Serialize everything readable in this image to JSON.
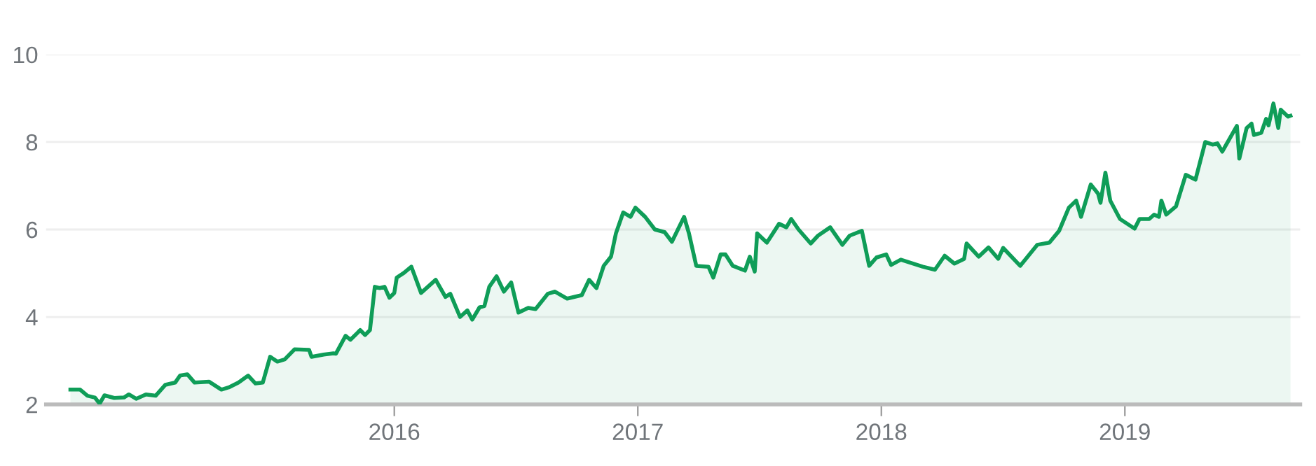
{
  "chart_data": {
    "type": "area",
    "x": [
      2014.67,
      2014.71,
      2014.74,
      2014.77,
      2014.79,
      2014.81,
      2014.85,
      2014.89,
      2014.91,
      2014.94,
      2014.98,
      2015.02,
      2015.06,
      2015.1,
      2015.12,
      2015.15,
      2015.18,
      2015.24,
      2015.29,
      2015.32,
      2015.36,
      2015.4,
      2015.43,
      2015.46,
      2015.49,
      2015.52,
      2015.55,
      2015.59,
      2015.65,
      2015.66,
      2015.71,
      2015.75,
      2015.76,
      2015.8,
      2015.82,
      2015.86,
      2015.88,
      2015.9,
      2015.92,
      2015.94,
      2015.96,
      2015.98,
      2016.0,
      2016.01,
      2016.04,
      2016.07,
      2016.11,
      2016.17,
      2016.21,
      2016.23,
      2016.27,
      2016.3,
      2016.32,
      2016.35,
      2016.37,
      2016.39,
      2016.42,
      2016.45,
      2016.48,
      2016.51,
      2016.55,
      2016.58,
      2016.63,
      2016.66,
      2016.71,
      2016.77,
      2016.8,
      2016.83,
      2016.86,
      2016.89,
      2016.91,
      2016.94,
      2016.97,
      2016.99,
      2017.03,
      2017.07,
      2017.11,
      2017.14,
      2017.19,
      2017.21,
      2017.24,
      2017.29,
      2017.31,
      2017.34,
      2017.36,
      2017.39,
      2017.44,
      2017.46,
      2017.48,
      2017.49,
      2017.53,
      2017.58,
      2017.61,
      2017.63,
      2017.66,
      2017.71,
      2017.74,
      2017.79,
      2017.84,
      2017.87,
      2017.92,
      2017.95,
      2017.98,
      2018.02,
      2018.04,
      2018.08,
      2018.17,
      2018.22,
      2018.26,
      2018.3,
      2018.34,
      2018.35,
      2018.4,
      2018.44,
      2018.48,
      2018.5,
      2018.57,
      2018.64,
      2018.69,
      2018.73,
      2018.77,
      2018.8,
      2018.82,
      2018.86,
      2018.89,
      2018.9,
      2018.92,
      2018.94,
      2018.98,
      2019.04,
      2019.06,
      2019.1,
      2019.12,
      2019.14,
      2019.15,
      2019.17,
      2019.21,
      2019.25,
      2019.29,
      2019.33,
      2019.36,
      2019.38,
      2019.4,
      2019.46,
      2019.47,
      2019.5,
      2019.52,
      2019.53,
      2019.56,
      2019.58,
      2019.59,
      2019.61,
      2019.63,
      2019.64,
      2019.67,
      2019.68
    ],
    "series": [
      {
        "color": "#0f9d58",
        "values": [
          2.34,
          2.34,
          2.2,
          2.16,
          2.02,
          2.21,
          2.15,
          2.16,
          2.23,
          2.13,
          2.23,
          2.2,
          2.45,
          2.5,
          2.66,
          2.69,
          2.5,
          2.52,
          2.34,
          2.39,
          2.5,
          2.66,
          2.48,
          2.5,
          3.09,
          2.98,
          3.03,
          3.26,
          3.25,
          3.09,
          3.14,
          3.17,
          3.16,
          3.57,
          3.48,
          3.7,
          3.59,
          3.7,
          4.69,
          4.66,
          4.69,
          4.44,
          4.55,
          4.9,
          5.01,
          5.15,
          4.55,
          4.85,
          4.46,
          4.53,
          4.0,
          4.15,
          3.94,
          4.22,
          4.25,
          4.69,
          4.93,
          4.58,
          4.79,
          4.1,
          4.21,
          4.18,
          4.53,
          4.58,
          4.42,
          4.5,
          4.85,
          4.66,
          5.17,
          5.38,
          5.91,
          6.39,
          6.29,
          6.5,
          6.29,
          6.0,
          5.94,
          5.72,
          6.29,
          5.91,
          5.17,
          5.15,
          4.9,
          5.43,
          5.43,
          5.17,
          5.06,
          5.38,
          5.04,
          5.91,
          5.7,
          6.13,
          6.05,
          6.24,
          6.0,
          5.68,
          5.86,
          6.05,
          5.65,
          5.86,
          5.97,
          5.17,
          5.36,
          5.43,
          5.19,
          5.31,
          5.15,
          5.08,
          5.4,
          5.22,
          5.33,
          5.68,
          5.38,
          5.59,
          5.33,
          5.58,
          5.17,
          5.65,
          5.7,
          5.97,
          6.5,
          6.66,
          6.29,
          7.03,
          6.82,
          6.61,
          7.3,
          6.66,
          6.24,
          6.02,
          6.24,
          6.24,
          6.34,
          6.29,
          6.66,
          6.34,
          6.53,
          7.25,
          7.14,
          8.0,
          7.94,
          7.97,
          7.78,
          8.37,
          7.62,
          8.32,
          8.42,
          8.16,
          8.21,
          8.53,
          8.38,
          8.88,
          8.32,
          8.74,
          8.58,
          8.6
        ]
      }
    ],
    "xlim": [
      2014.57,
      2019.72
    ],
    "xticks": [
      2016,
      2017,
      2018,
      2019
    ],
    "ylim": [
      2,
      10
    ],
    "yticks": [
      2,
      4,
      6,
      8,
      10
    ],
    "grid": "y"
  }
}
